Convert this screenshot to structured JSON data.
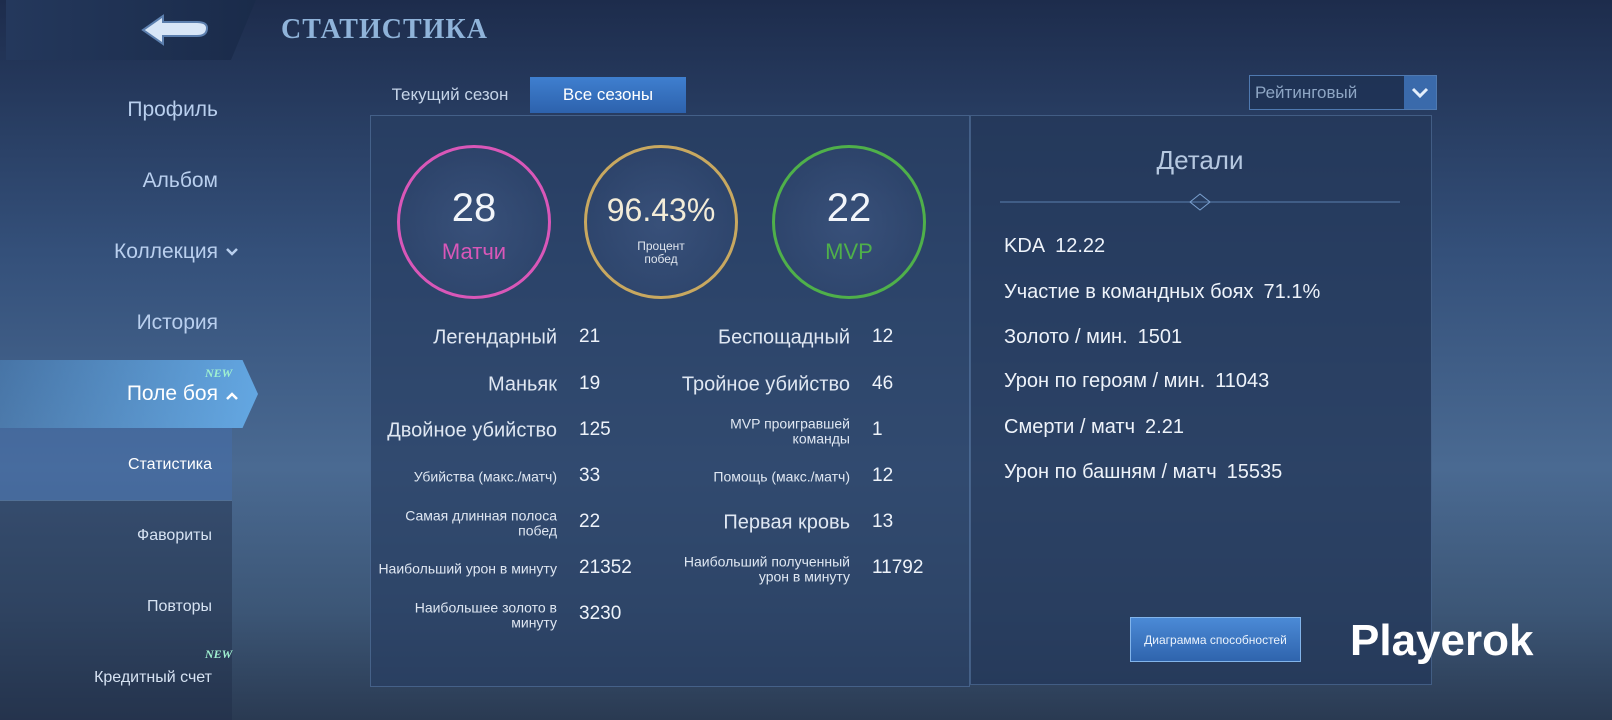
{
  "header": {
    "title": "СТАТИСТИКА"
  },
  "sidebar": {
    "items": [
      {
        "label": "Профиль"
      },
      {
        "label": "Альбом"
      },
      {
        "label": "Коллекция"
      },
      {
        "label": "История"
      },
      {
        "label": "Поле боя",
        "badge": "NEW"
      }
    ],
    "subitems": [
      {
        "label": "Статистика"
      },
      {
        "label": "Фавориты"
      },
      {
        "label": "Повторы"
      },
      {
        "label": "Кредитный счет",
        "badge": "NEW"
      }
    ]
  },
  "tabs": [
    "Текущий сезон",
    "Все сезоны"
  ],
  "mode_select": "Рейтинговый",
  "summary": [
    {
      "value": 28,
      "label": "Матчи",
      "color": "#d957b8"
    },
    {
      "value": "96.43%",
      "label": "Процент побед",
      "color": "#c8a860"
    },
    {
      "value": 22,
      "label": "MVP",
      "color": "#4fb04a"
    }
  ],
  "stats": {
    "left": [
      {
        "label": "Легендарный",
        "value": 21
      },
      {
        "label": "Маньяк",
        "value": 19
      },
      {
        "label": "Двойное убийство",
        "value": 125
      },
      {
        "label": "Убийства (макс./матч)",
        "value": 33
      },
      {
        "label": "Самая длинная полоса побед",
        "value": 22
      },
      {
        "label": "Наибольший урон в минуту",
        "value": 21352
      },
      {
        "label": "Наибольшее золото в минуту",
        "value": 3230
      }
    ],
    "right": [
      {
        "label": "Беспощадный",
        "value": 12
      },
      {
        "label": "Тройное убийство",
        "value": 46
      },
      {
        "label": "MVP проигравшей команды",
        "value": 1
      },
      {
        "label": "Помощь (макс./матч)",
        "value": 12
      },
      {
        "label": "Первая кровь",
        "value": 13
      },
      {
        "label": "Наибольший полученный урон в минуту",
        "value": 11792
      }
    ]
  },
  "details": {
    "title": "Детали",
    "items": [
      {
        "label": "KDA",
        "value": 12.22
      },
      {
        "label": "Участие в командных боях",
        "value": "71.1%"
      },
      {
        "label": "Золото / мин.",
        "value": 1501
      },
      {
        "label": "Урон по героям / мин.",
        "value": 11043
      },
      {
        "label": "Смерти / матч",
        "value": 2.21
      },
      {
        "label": "Урон по башням / матч",
        "value": 15535
      }
    ],
    "button": "Диаграмма способностей"
  },
  "watermark": "Playerok"
}
